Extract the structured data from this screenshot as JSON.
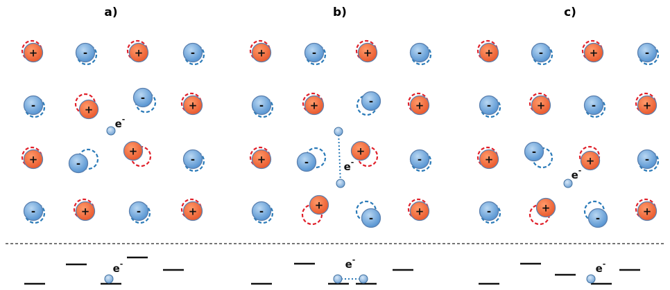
{
  "panels": [
    {
      "label": "a)",
      "rows": [
        [
          "+",
          "-",
          "+",
          "-"
        ],
        [
          "-",
          "+",
          "-",
          "+"
        ],
        [
          "+",
          "-",
          "+",
          "-"
        ],
        [
          "-",
          "+",
          "-",
          "+"
        ]
      ],
      "electron": {
        "symbol": "e",
        "charge": "-"
      },
      "level_electron": {
        "symbol": "e",
        "charge": "-"
      }
    },
    {
      "label": "b)",
      "rows": [
        [
          "+",
          "-",
          "+",
          "-"
        ],
        [
          "-",
          "+",
          "-",
          "+"
        ],
        [
          "+",
          "-",
          "+",
          "-"
        ],
        [
          "-",
          "+",
          "-",
          "+"
        ]
      ],
      "electron": {
        "symbol": "e",
        "charge": "-"
      },
      "level_electron": {
        "symbol": "e",
        "charge": "-"
      }
    },
    {
      "label": "c)",
      "rows": [
        [
          "+",
          "-",
          "+",
          "-"
        ],
        [
          "-",
          "+",
          "-",
          "+"
        ],
        [
          "+",
          "-",
          "+",
          "-"
        ],
        [
          "-",
          "+",
          "-",
          "+"
        ]
      ],
      "electron": {
        "symbol": "e",
        "charge": "-"
      },
      "level_electron": {
        "symbol": "e",
        "charge": "-"
      }
    }
  ]
}
